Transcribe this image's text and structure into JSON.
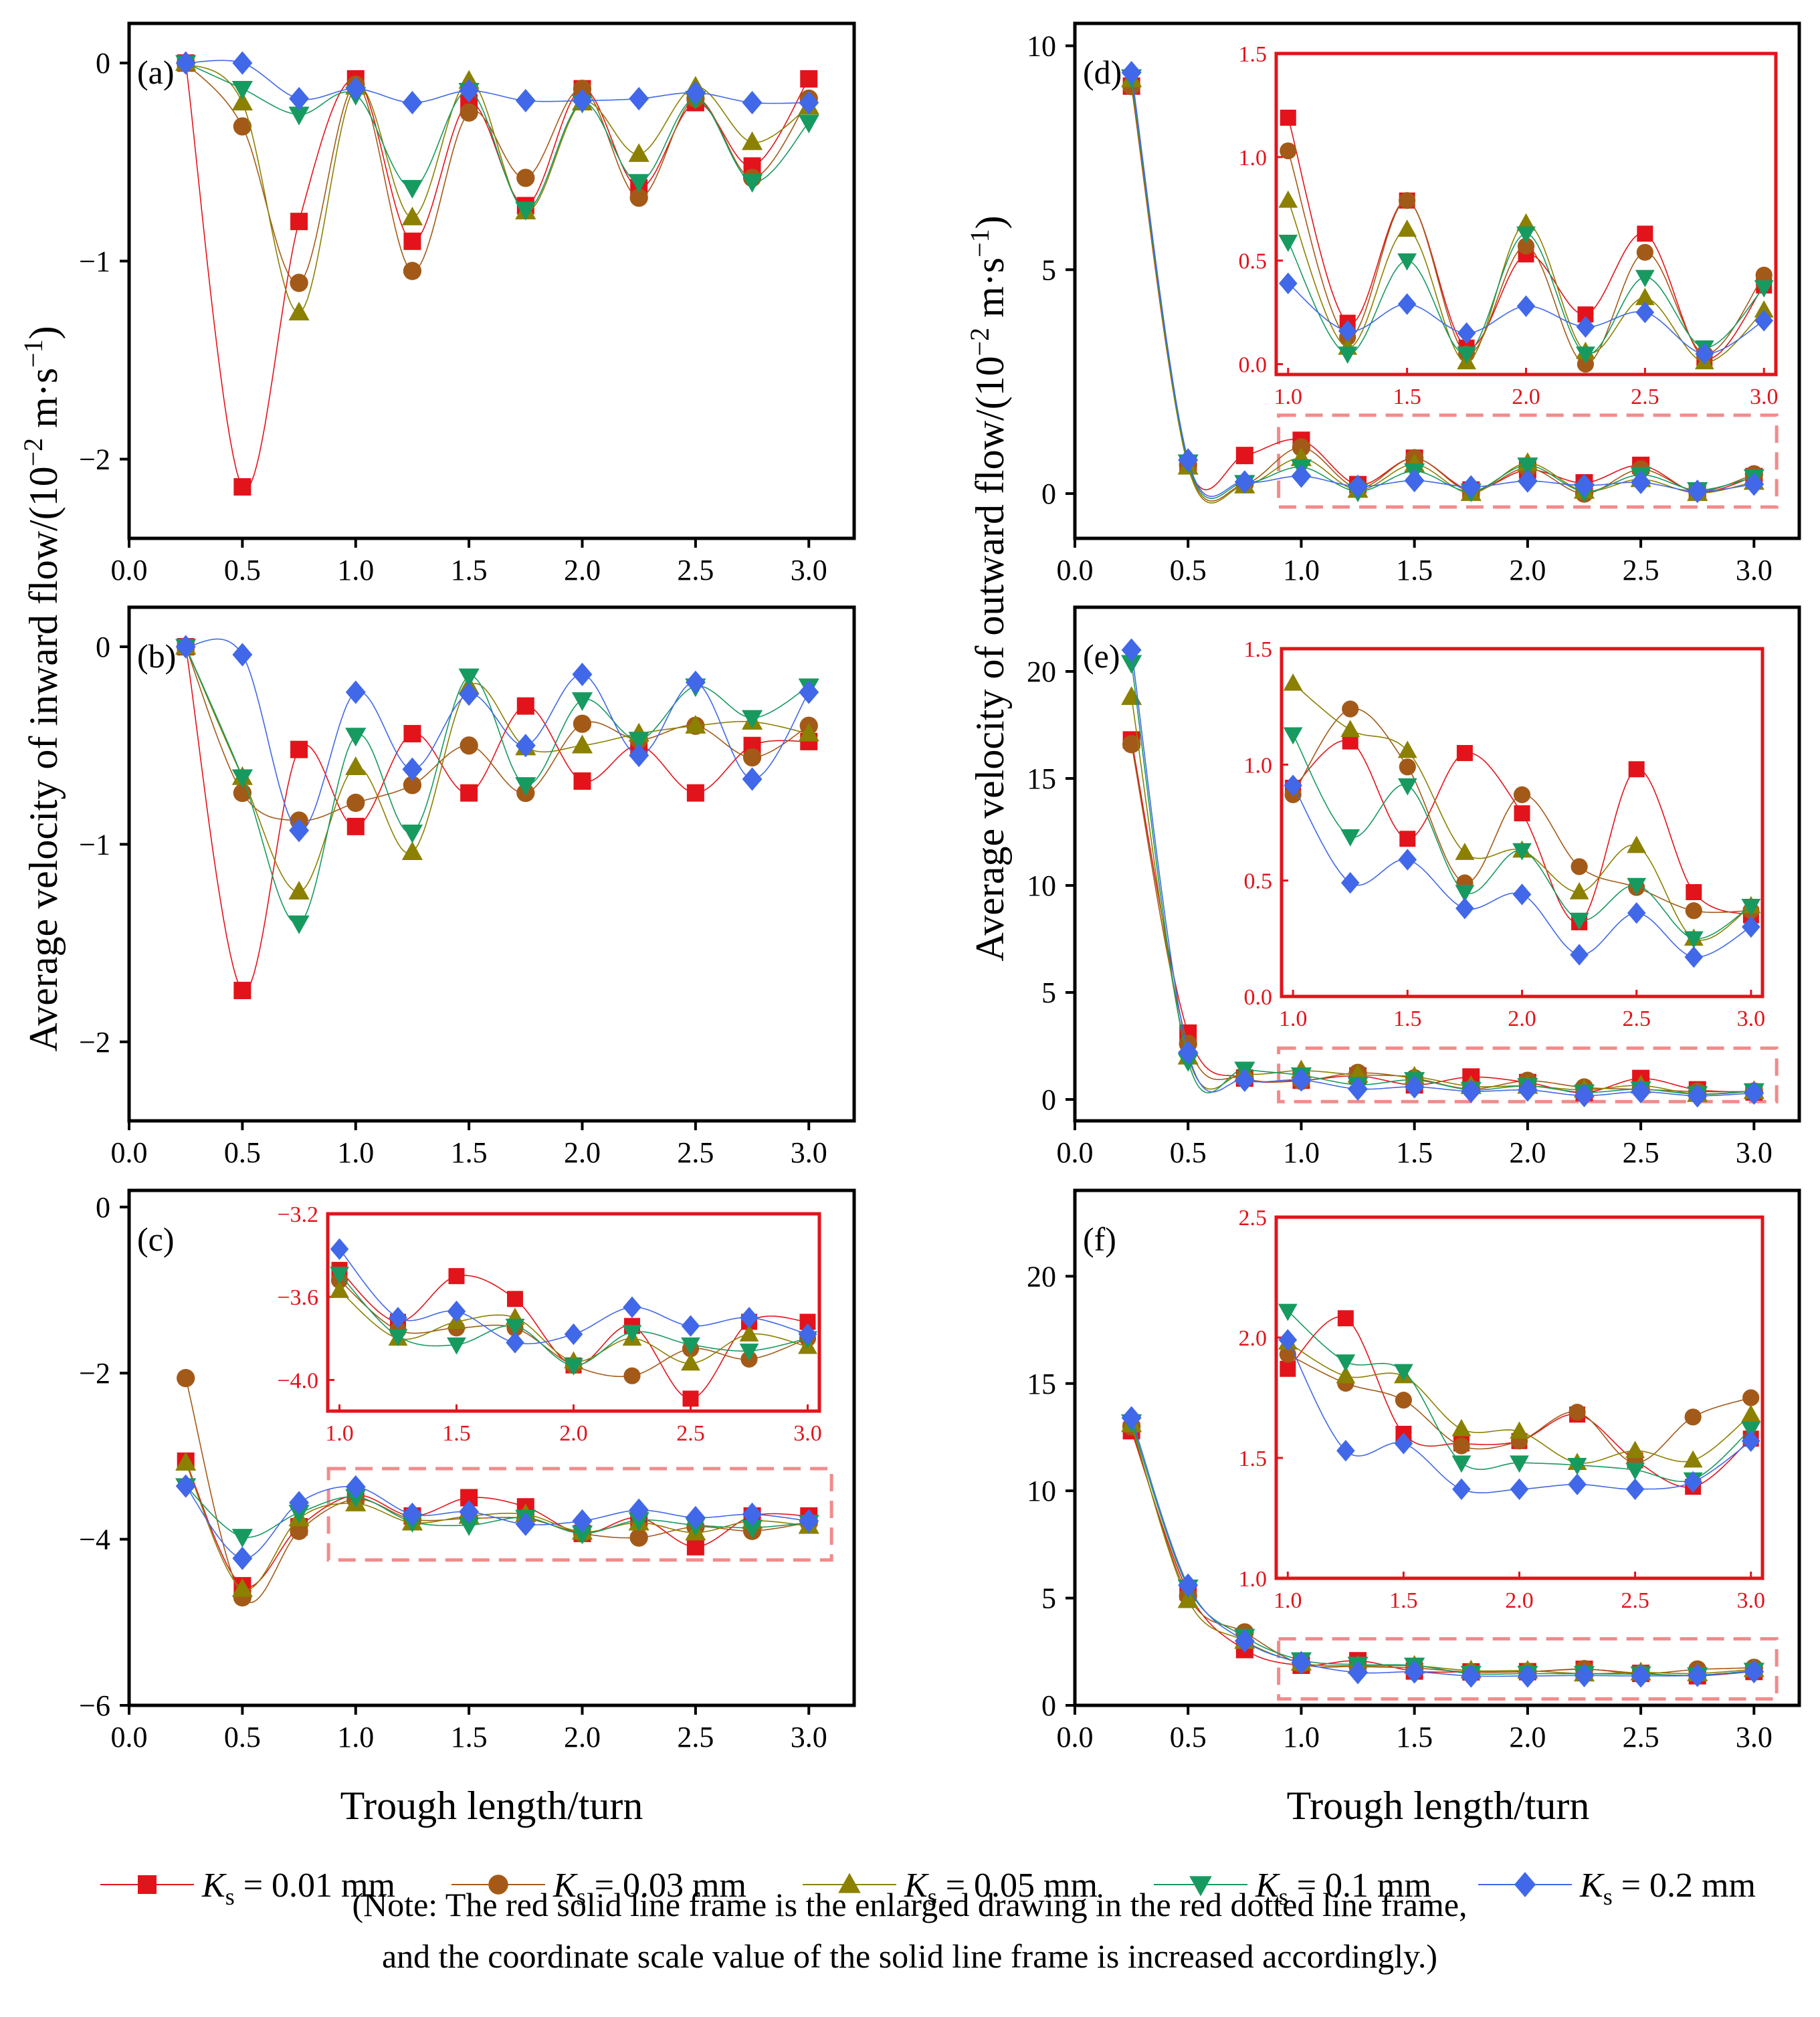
{
  "chart_data": [
    {
      "type": "line",
      "panel_label": "(a)",
      "x": [
        0.25,
        0.5,
        0.75,
        1.0,
        1.25,
        1.5,
        1.75,
        2.0,
        2.25,
        2.5,
        2.75,
        3.0
      ],
      "xlim": [
        0.0,
        3.2
      ],
      "ylim": [
        -2.4,
        0.2
      ],
      "xticks": [
        0.0,
        0.5,
        1.0,
        1.5,
        2.0,
        2.5,
        3.0
      ],
      "yticks": [
        -2,
        -1,
        0
      ],
      "series": [
        {
          "name": "Ks = 0.01 mm",
          "values": [
            0,
            -2.14,
            -0.8,
            -0.08,
            -0.9,
            -0.2,
            -0.72,
            -0.13,
            -0.63,
            -0.2,
            -0.52,
            -0.08
          ]
        },
        {
          "name": "Ks = 0.03 mm",
          "values": [
            0,
            -0.32,
            -1.11,
            -0.11,
            -1.05,
            -0.25,
            -0.58,
            -0.13,
            -0.68,
            -0.18,
            -0.58,
            -0.18
          ]
        },
        {
          "name": "Ks = 0.05 mm",
          "values": [
            0,
            -0.2,
            -1.26,
            -0.12,
            -0.78,
            -0.09,
            -0.75,
            -0.2,
            -0.46,
            -0.12,
            -0.4,
            -0.22
          ]
        },
        {
          "name": "Ks = 0.1 mm",
          "values": [
            0,
            -0.13,
            -0.26,
            -0.16,
            -0.63,
            -0.14,
            -0.74,
            -0.2,
            -0.6,
            -0.18,
            -0.6,
            -0.3
          ]
        },
        {
          "name": "Ks = 0.2 mm",
          "values": [
            0,
            0,
            -0.18,
            -0.13,
            -0.2,
            -0.14,
            -0.19,
            -0.19,
            -0.18,
            -0.15,
            -0.2,
            -0.2
          ]
        }
      ]
    },
    {
      "type": "line",
      "panel_label": "(b)",
      "x": [
        0.25,
        0.5,
        0.75,
        1.0,
        1.25,
        1.5,
        1.75,
        2.0,
        2.25,
        2.5,
        2.75,
        3.0
      ],
      "xlim": [
        0.0,
        3.2
      ],
      "ylim": [
        -2.4,
        0.2
      ],
      "xticks": [
        0.0,
        0.5,
        1.0,
        1.5,
        2.0,
        2.5,
        3.0
      ],
      "yticks": [
        -2,
        -1,
        0
      ],
      "series": [
        {
          "name": "Ks = 0.01 mm",
          "values": [
            0,
            -1.74,
            -0.52,
            -0.91,
            -0.44,
            -0.74,
            -0.3,
            -0.68,
            -0.5,
            -0.74,
            -0.5,
            -0.48
          ]
        },
        {
          "name": "Ks = 0.03 mm",
          "values": [
            0,
            -0.74,
            -0.88,
            -0.79,
            -0.7,
            -0.5,
            -0.74,
            -0.39,
            -0.47,
            -0.4,
            -0.56,
            -0.4
          ]
        },
        {
          "name": "Ks = 0.05 mm",
          "values": [
            0,
            -0.66,
            -1.24,
            -0.61,
            -1.04,
            -0.2,
            -0.51,
            -0.5,
            -0.44,
            -0.4,
            -0.38,
            -0.44
          ]
        },
        {
          "name": "Ks = 0.1 mm",
          "values": [
            0,
            -0.66,
            -1.4,
            -0.45,
            -0.94,
            -0.15,
            -0.7,
            -0.27,
            -0.47,
            -0.2,
            -0.36,
            -0.2
          ]
        },
        {
          "name": "Ks = 0.2 mm",
          "values": [
            0,
            -0.04,
            -0.93,
            -0.23,
            -0.62,
            -0.24,
            -0.5,
            -0.14,
            -0.55,
            -0.18,
            -0.67,
            -0.23
          ]
        }
      ]
    },
    {
      "type": "line",
      "panel_label": "(c)",
      "x": [
        0.25,
        0.5,
        0.75,
        1.0,
        1.25,
        1.5,
        1.75,
        2.0,
        2.25,
        2.5,
        2.75,
        3.0
      ],
      "xlim": [
        0.0,
        3.2
      ],
      "ylim": [
        -6,
        0.2
      ],
      "xticks": [
        0.0,
        0.5,
        1.0,
        1.5,
        2.0,
        2.5,
        3.0
      ],
      "yticks": [
        -6,
        -4,
        -2,
        0
      ],
      "inset": {
        "xlim": [
          0.95,
          3.05
        ],
        "ylim": [
          -4.15,
          -3.2
        ],
        "xticks": [
          1.0,
          1.5,
          2.0,
          2.5,
          3.0
        ],
        "yticks": [
          -4.0,
          -3.6,
          -3.2
        ],
        "frame_xlim": [
          0.88,
          3.1
        ],
        "frame_ylim": [
          -4.25,
          -3.15
        ]
      },
      "series": [
        {
          "name": "Ks = 0.01 mm",
          "values": [
            -3.06,
            -4.56,
            -3.85,
            -3.47,
            -3.72,
            -3.5,
            -3.61,
            -3.93,
            -3.74,
            -4.09,
            -3.72,
            -3.72
          ]
        },
        {
          "name": "Ks = 0.03 mm",
          "values": [
            -2.06,
            -4.7,
            -3.9,
            -3.52,
            -3.76,
            -3.75,
            -3.75,
            -3.93,
            -3.98,
            -3.85,
            -3.9,
            -3.8
          ]
        },
        {
          "name": "Ks = 0.05 mm",
          "values": [
            -3.08,
            -4.6,
            -3.75,
            -3.57,
            -3.8,
            -3.72,
            -3.7,
            -3.91,
            -3.8,
            -3.92,
            -3.78,
            -3.84
          ]
        },
        {
          "name": "Ks = 0.1 mm",
          "values": [
            -3.36,
            -3.97,
            -3.68,
            -3.49,
            -3.79,
            -3.83,
            -3.74,
            -3.93,
            -3.77,
            -3.83,
            -3.86,
            -3.8
          ]
        },
        {
          "name": "Ks = 0.2 mm",
          "values": [
            -3.36,
            -4.23,
            -3.56,
            -3.37,
            -3.7,
            -3.67,
            -3.82,
            -3.78,
            -3.65,
            -3.74,
            -3.7,
            -3.78
          ]
        }
      ]
    },
    {
      "type": "line",
      "panel_label": "(d)",
      "x": [
        0.25,
        0.5,
        0.75,
        1.0,
        1.25,
        1.5,
        1.75,
        2.0,
        2.25,
        2.5,
        2.75,
        3.0
      ],
      "xlim": [
        0.0,
        3.2
      ],
      "ylim": [
        -1,
        10.5
      ],
      "xticks": [
        0.0,
        0.5,
        1.0,
        1.5,
        2.0,
        2.5,
        3.0
      ],
      "yticks": [
        0,
        5,
        10
      ],
      "inset": {
        "xlim": [
          0.95,
          3.05
        ],
        "ylim": [
          -0.05,
          1.5
        ],
        "xticks": [
          1.0,
          1.5,
          2.0,
          2.5,
          3.0
        ],
        "yticks": [
          0.0,
          0.5,
          1.0,
          1.5
        ],
        "frame_xlim": [
          0.9,
          3.1
        ],
        "frame_ylim": [
          -0.3,
          1.75
        ]
      },
      "series": [
        {
          "name": "Ks = 0.01 mm",
          "values": [
            9.1,
            0.67,
            0.85,
            1.19,
            0.2,
            0.79,
            0.08,
            0.53,
            0.24,
            0.63,
            0.03,
            0.38
          ]
        },
        {
          "name": "Ks = 0.03 mm",
          "values": [
            9.1,
            0.64,
            0.22,
            1.03,
            0.13,
            0.79,
            0.05,
            0.57,
            0.0,
            0.54,
            0.05,
            0.43
          ]
        },
        {
          "name": "Ks = 0.05 mm",
          "values": [
            9.25,
            0.6,
            0.18,
            0.79,
            0.08,
            0.65,
            0.01,
            0.68,
            0.06,
            0.32,
            0.01,
            0.26
          ]
        },
        {
          "name": "Ks = 0.1 mm",
          "values": [
            9.3,
            0.7,
            0.24,
            0.59,
            0.05,
            0.5,
            0.05,
            0.63,
            0.05,
            0.42,
            0.08,
            0.37
          ]
        },
        {
          "name": "Ks = 0.2 mm",
          "values": [
            9.4,
            0.75,
            0.26,
            0.39,
            0.16,
            0.29,
            0.15,
            0.28,
            0.18,
            0.25,
            0.05,
            0.21
          ]
        }
      ]
    },
    {
      "type": "line",
      "panel_label": "(e)",
      "x": [
        0.25,
        0.5,
        0.75,
        1.0,
        1.25,
        1.5,
        1.75,
        2.0,
        2.25,
        2.5,
        2.75,
        3.0
      ],
      "xlim": [
        0.0,
        3.2
      ],
      "ylim": [
        -1,
        23
      ],
      "xticks": [
        0.0,
        0.5,
        1.0,
        1.5,
        2.0,
        2.5,
        3.0
      ],
      "yticks": [
        0,
        5,
        10,
        15,
        20
      ],
      "inset": {
        "xlim": [
          0.95,
          3.05
        ],
        "ylim": [
          0.0,
          1.5
        ],
        "xticks": [
          1.0,
          1.5,
          2.0,
          2.5,
          3.0
        ],
        "yticks": [
          0.0,
          0.5,
          1.0,
          1.5
        ],
        "frame_xlim": [
          0.9,
          3.1
        ],
        "frame_ylim": [
          -0.1,
          2.4
        ]
      },
      "series": [
        {
          "name": "Ks = 0.01 mm",
          "values": [
            16.8,
            3.1,
            1.0,
            0.9,
            1.1,
            0.68,
            1.05,
            0.79,
            0.32,
            0.98,
            0.45,
            0.35
          ]
        },
        {
          "name": "Ks = 0.03 mm",
          "values": [
            16.6,
            2.6,
            1.0,
            0.87,
            1.24,
            0.99,
            0.49,
            0.87,
            0.56,
            0.47,
            0.37,
            0.37
          ]
        },
        {
          "name": "Ks = 0.05 mm",
          "values": [
            18.8,
            2.0,
            1.2,
            1.35,
            1.15,
            1.06,
            0.62,
            0.63,
            0.45,
            0.65,
            0.25,
            0.39
          ]
        },
        {
          "name": "Ks = 0.1 mm",
          "values": [
            20.4,
            1.8,
            1.4,
            1.13,
            0.69,
            0.91,
            0.45,
            0.63,
            0.33,
            0.48,
            0.25,
            0.39
          ]
        },
        {
          "name": "Ks = 0.2 mm",
          "values": [
            21.0,
            2.2,
            0.9,
            0.91,
            0.49,
            0.59,
            0.38,
            0.44,
            0.18,
            0.36,
            0.17,
            0.3
          ]
        }
      ]
    },
    {
      "type": "line",
      "panel_label": "(f)",
      "x": [
        0.25,
        0.5,
        0.75,
        1.0,
        1.25,
        1.5,
        1.75,
        2.0,
        2.25,
        2.5,
        2.75,
        3.0
      ],
      "xlim": [
        0.0,
        3.2
      ],
      "ylim": [
        0,
        24
      ],
      "xticks": [
        0.0,
        0.5,
        1.0,
        1.5,
        2.0,
        2.5,
        3.0
      ],
      "yticks": [
        0,
        5,
        10,
        15,
        20
      ],
      "inset": {
        "xlim": [
          0.95,
          3.05
        ],
        "ylim": [
          1.0,
          2.5
        ],
        "xticks": [
          1.0,
          1.5,
          2.0,
          2.5,
          3.0
        ],
        "yticks": [
          1.0,
          1.5,
          2.0,
          2.5
        ],
        "frame_xlim": [
          0.9,
          3.1
        ],
        "frame_ylim": [
          0.3,
          3.1
        ]
      },
      "series": [
        {
          "name": "Ks = 0.01 mm",
          "values": [
            12.8,
            5.3,
            2.6,
            1.87,
            2.08,
            1.6,
            1.56,
            1.57,
            1.68,
            1.49,
            1.38,
            1.58
          ]
        },
        {
          "name": "Ks = 0.03 mm",
          "values": [
            13.0,
            5.1,
            3.4,
            1.93,
            1.81,
            1.74,
            1.55,
            1.57,
            1.69,
            1.48,
            1.67,
            1.75
          ]
        },
        {
          "name": "Ks = 0.05 mm",
          "values": [
            13.1,
            4.9,
            3.0,
            1.98,
            1.84,
            1.84,
            1.62,
            1.61,
            1.48,
            1.53,
            1.49,
            1.68
          ]
        },
        {
          "name": "Ks = 0.1 mm",
          "values": [
            13.2,
            5.5,
            3.2,
            2.11,
            1.9,
            1.86,
            1.48,
            1.48,
            1.47,
            1.45,
            1.41,
            1.62
          ]
        },
        {
          "name": "Ks = 0.2 mm",
          "values": [
            13.4,
            5.6,
            3.0,
            1.99,
            1.53,
            1.56,
            1.37,
            1.37,
            1.39,
            1.37,
            1.4,
            1.57
          ]
        }
      ]
    }
  ],
  "ylabel_left": "Average velocity of inward flow/(10",
  "ylabel_right": "Average velocity of outward flow/(10",
  "ylabel_exp": "−2",
  "ylabel_unit": " m·s",
  "ylabel_unit_exp": "−1",
  "ylabel_close": ")",
  "xlabel": "Trough length/turn",
  "legend": [
    {
      "ks": "K",
      "sub": "s",
      "rest": " = 0.01 mm"
    },
    {
      "ks": "K",
      "sub": "s",
      "rest": " = 0.03 mm"
    },
    {
      "ks": "K",
      "sub": "s",
      "rest": " = 0.05 mm"
    },
    {
      "ks": "K",
      "sub": "s",
      "rest": " = 0.1 mm"
    },
    {
      "ks": "K",
      "sub": "s",
      "rest": " = 0.2 mm"
    }
  ],
  "note_line1": "(Note: The red solid line frame is the enlarged drawing in the red dotted line frame,",
  "note_line2": "and the coordinate scale value of the solid line frame is increased accordingly.)",
  "colors": {
    "series": [
      "#e3131b",
      "#a35a18",
      "#8b8000",
      "#179a60",
      "#4168e8"
    ],
    "inset": "#e3131b",
    "dashed_frame": "#f28b8b",
    "axis": "#000000"
  },
  "markers": [
    "square",
    "circle",
    "triangle-up",
    "triangle-down",
    "diamond"
  ]
}
